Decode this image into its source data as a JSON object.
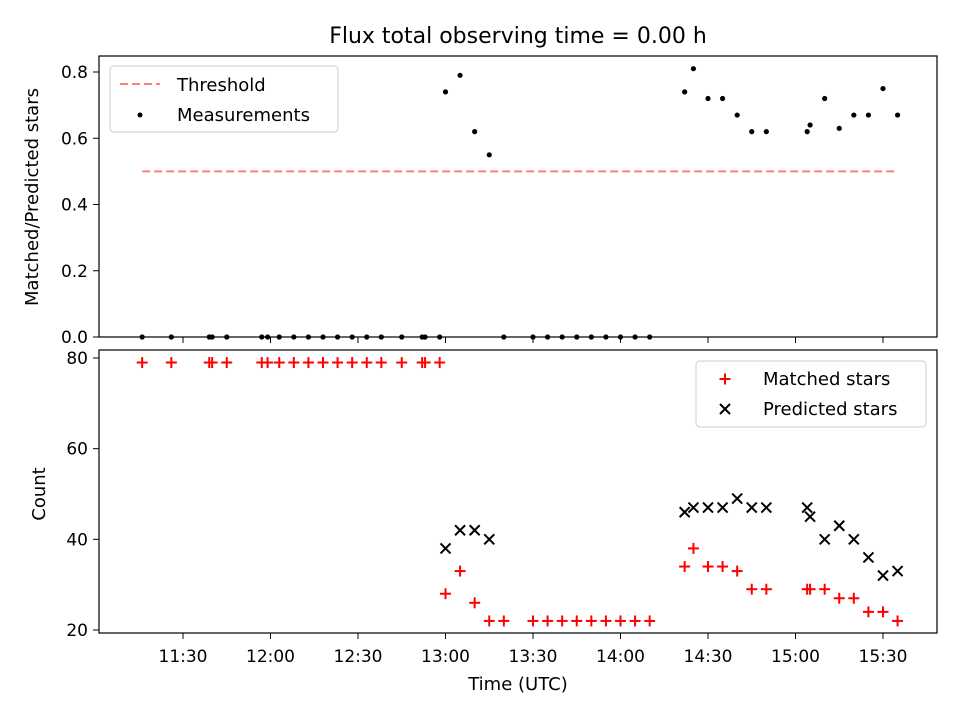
{
  "chart_data": [
    {
      "type": "scatter",
      "title": "Flux total observing time = 0.00 h",
      "ylabel": "Matched/Predicted stars",
      "xlabel": "",
      "x_axis": "time",
      "ylim": [
        0,
        0.85
      ],
      "yticks": [
        "0.0",
        "0.2",
        "0.4",
        "0.6",
        "0.8"
      ],
      "grid": false,
      "legend": {
        "placement": "top-left",
        "entries": [
          "Threshold",
          "Measurements"
        ]
      },
      "threshold": {
        "name": "Threshold",
        "value": 0.5,
        "x_start": "11:16",
        "x_end": "15:34",
        "color": "#ff7f7f",
        "style": "dashed"
      },
      "series": [
        {
          "name": "Measurements",
          "color": "#000000",
          "marker": "dot",
          "x": [
            "11:16",
            "11:26",
            "11:39",
            "11:40",
            "11:45",
            "11:57",
            "11:59",
            "12:03",
            "12:08",
            "12:13",
            "12:18",
            "12:23",
            "12:28",
            "12:33",
            "12:38",
            "12:45",
            "12:52",
            "12:53",
            "12:58",
            "13:00",
            "13:05",
            "13:10",
            "13:15",
            "13:20",
            "13:30",
            "13:35",
            "13:40",
            "13:45",
            "13:50",
            "13:55",
            "14:00",
            "14:05",
            "14:10",
            "14:22",
            "14:25",
            "14:30",
            "14:35",
            "14:40",
            "14:45",
            "14:50",
            "15:04",
            "15:05",
            "15:10",
            "15:15",
            "15:20",
            "15:25",
            "15:30",
            "15:35"
          ],
          "y": [
            0,
            0,
            0,
            0,
            0,
            0,
            0,
            0,
            0,
            0,
            0,
            0,
            0,
            0,
            0,
            0,
            0,
            0,
            0,
            0.74,
            0.79,
            0.62,
            0.55,
            0,
            0,
            0,
            0,
            0,
            0,
            0,
            0,
            0,
            0,
            0.74,
            0.81,
            0.72,
            0.72,
            0.67,
            0.62,
            0.62,
            0.62,
            0.64,
            0.72,
            0.63,
            0.67,
            0.67,
            0.75,
            0.67
          ]
        }
      ]
    },
    {
      "type": "scatter",
      "title": "",
      "xlabel": "Time (UTC)",
      "ylabel": "Count",
      "x_axis": "time",
      "ylim": [
        19.5,
        81
      ],
      "yticks": [
        "20",
        "40",
        "60",
        "80"
      ],
      "xticks": [
        "11:30",
        "12:00",
        "12:30",
        "13:00",
        "13:30",
        "14:00",
        "14:30",
        "15:00",
        "15:30"
      ],
      "grid": false,
      "legend": {
        "placement": "top-right",
        "entries": [
          "Matched stars",
          "Predicted stars"
        ]
      },
      "series": [
        {
          "name": "Matched stars",
          "color": "#ff0000",
          "marker": "plus",
          "x": [
            "11:16",
            "11:26",
            "11:39",
            "11:40",
            "11:45",
            "11:57",
            "11:59",
            "12:03",
            "12:08",
            "12:13",
            "12:18",
            "12:23",
            "12:28",
            "12:33",
            "12:38",
            "12:45",
            "12:52",
            "12:53",
            "12:58",
            "13:00",
            "13:05",
            "13:10",
            "13:15",
            "13:20",
            "13:30",
            "13:35",
            "13:40",
            "13:45",
            "13:50",
            "13:55",
            "14:00",
            "14:05",
            "14:10",
            "14:22",
            "14:25",
            "14:30",
            "14:35",
            "14:40",
            "14:45",
            "14:50",
            "15:04",
            "15:05",
            "15:10",
            "15:15",
            "15:20",
            "15:25",
            "15:30",
            "15:35"
          ],
          "y": [
            79,
            79,
            79,
            79,
            79,
            79,
            79,
            79,
            79,
            79,
            79,
            79,
            79,
            79,
            79,
            79,
            79,
            79,
            79,
            28,
            33,
            26,
            22,
            22,
            22,
            22,
            22,
            22,
            22,
            22,
            22,
            22,
            22,
            34,
            38,
            34,
            34,
            33,
            29,
            29,
            29,
            29,
            29,
            27,
            27,
            24,
            24,
            22
          ]
        },
        {
          "name": "Predicted stars",
          "color": "#000000",
          "marker": "x",
          "x": [
            "13:00",
            "13:05",
            "13:10",
            "13:15",
            "14:22",
            "14:25",
            "14:30",
            "14:35",
            "14:40",
            "14:45",
            "14:50",
            "15:04",
            "15:05",
            "15:10",
            "15:15",
            "15:20",
            "15:25",
            "15:30",
            "15:35"
          ],
          "y": [
            38,
            42,
            42,
            40,
            46,
            47,
            47,
            47,
            49,
            47,
            47,
            47,
            45,
            40,
            43,
            40,
            36,
            32,
            33
          ]
        }
      ]
    }
  ]
}
